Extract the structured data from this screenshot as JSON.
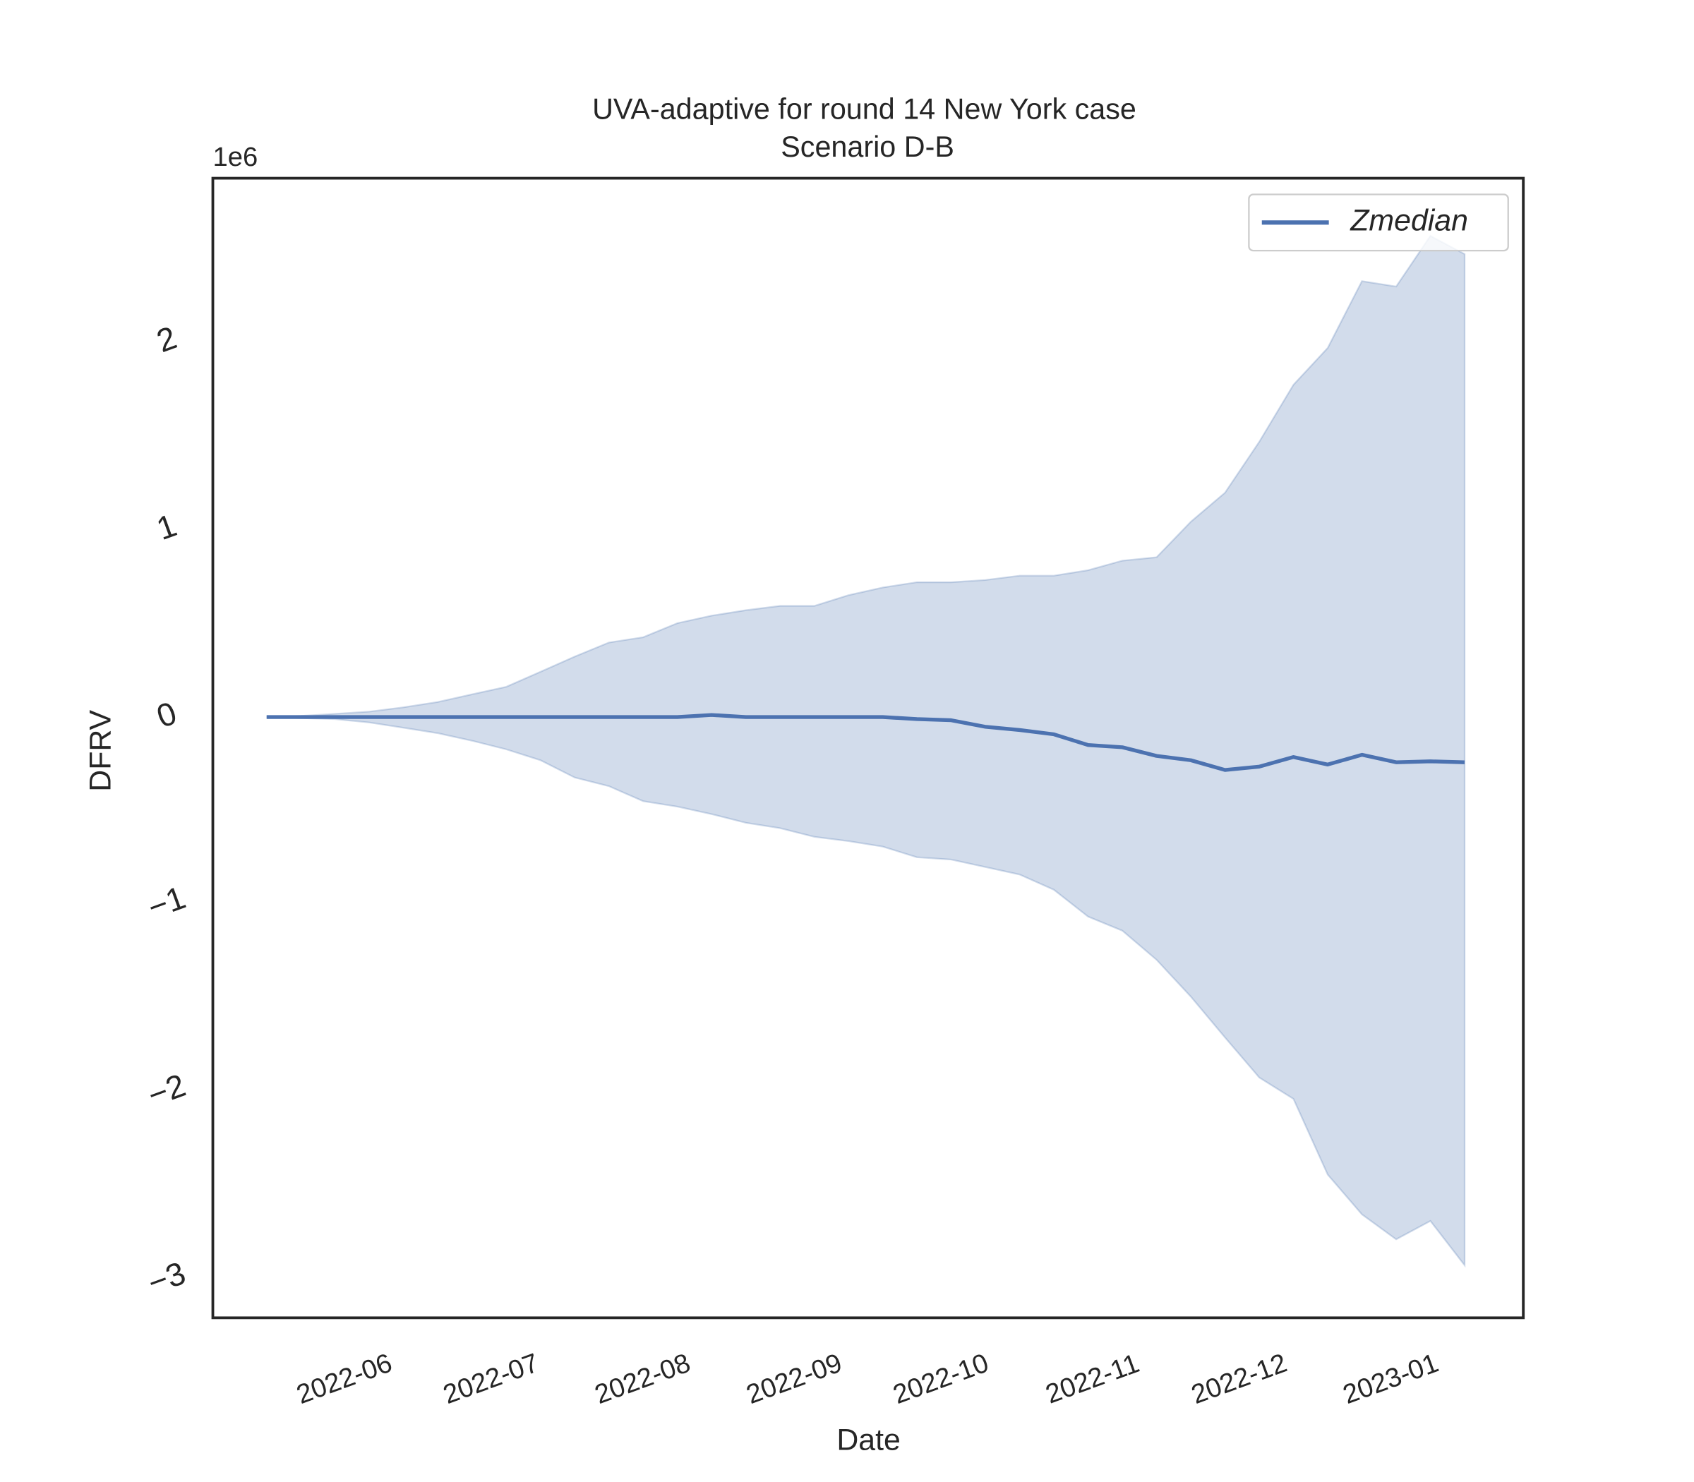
{
  "chart_data": {
    "type": "line",
    "title": "UVA-adaptive for round 14 New York case",
    "subtitle": "Scenario D-B",
    "x_label": "Date",
    "y_label": "DFRV",
    "y_offset_label": "1e6",
    "x": [
      "2022-05-16",
      "2022-05-23",
      "2022-05-30",
      "2022-06-06",
      "2022-06-13",
      "2022-06-20",
      "2022-06-27",
      "2022-07-04",
      "2022-07-11",
      "2022-07-18",
      "2022-07-25",
      "2022-08-01",
      "2022-08-08",
      "2022-08-15",
      "2022-08-22",
      "2022-08-29",
      "2022-09-05",
      "2022-09-12",
      "2022-09-19",
      "2022-09-26",
      "2022-10-03",
      "2022-10-10",
      "2022-10-17",
      "2022-10-24",
      "2022-10-31",
      "2022-11-07",
      "2022-11-14",
      "2022-11-21",
      "2022-11-28",
      "2022-12-05",
      "2022-12-12",
      "2022-12-19",
      "2022-12-26",
      "2023-01-02",
      "2023-01-09",
      "2023-01-16"
    ],
    "series": [
      {
        "name": "Zmedian",
        "color": "#4c72b0",
        "values": [
          0,
          0,
          0,
          0,
          0,
          0,
          0,
          0,
          0,
          0,
          0,
          0,
          0,
          0.011,
          0,
          0,
          0,
          0,
          0,
          -0.011,
          -0.017,
          -0.052,
          -0.069,
          -0.092,
          -0.149,
          -0.161,
          -0.207,
          -0.23,
          -0.282,
          -0.264,
          -0.213,
          -0.253,
          -0.201,
          -0.241,
          -0.236,
          -0.241
        ]
      }
    ],
    "band": {
      "color": "#4c72b0",
      "upper": [
        0,
        0.006,
        0.017,
        0.029,
        0.052,
        0.08,
        0.121,
        0.161,
        0.241,
        0.322,
        0.397,
        0.425,
        0.5,
        0.54,
        0.569,
        0.592,
        0.592,
        0.649,
        0.69,
        0.718,
        0.718,
        0.73,
        0.753,
        0.753,
        0.782,
        0.833,
        0.851,
        1.04,
        1.195,
        1.466,
        1.77,
        1.966,
        2.322,
        2.293,
        2.563,
        2.466
      ],
      "lower": [
        0,
        -0.006,
        -0.011,
        -0.029,
        -0.057,
        -0.086,
        -0.126,
        -0.172,
        -0.23,
        -0.322,
        -0.368,
        -0.448,
        -0.477,
        -0.517,
        -0.563,
        -0.592,
        -0.638,
        -0.661,
        -0.69,
        -0.747,
        -0.759,
        -0.799,
        -0.839,
        -0.92,
        -1.063,
        -1.138,
        -1.293,
        -1.489,
        -1.707,
        -1.92,
        -2.034,
        -2.437,
        -2.649,
        -2.782,
        -2.684,
        -2.92
      ]
    },
    "xlim": [
      "2022-05-05",
      "2023-01-28"
    ],
    "xticks": [
      {
        "value": "2022-06-01",
        "label": "2022-06"
      },
      {
        "value": "2022-07-01",
        "label": "2022-07"
      },
      {
        "value": "2022-08-01",
        "label": "2022-08"
      },
      {
        "value": "2022-09-01",
        "label": "2022-09"
      },
      {
        "value": "2022-10-01",
        "label": "2022-10"
      },
      {
        "value": "2022-11-01",
        "label": "2022-11"
      },
      {
        "value": "2022-12-01",
        "label": "2022-12"
      },
      {
        "value": "2023-01-01",
        "label": "2023-01"
      }
    ],
    "ylim": [
      -3.2,
      2.87
    ],
    "yticks": [
      {
        "value": -3,
        "label": "−3"
      },
      {
        "value": -2,
        "label": "−2"
      },
      {
        "value": -1,
        "label": "−1"
      },
      0,
      1,
      2
    ],
    "grid": false,
    "legend": "upper right"
  }
}
